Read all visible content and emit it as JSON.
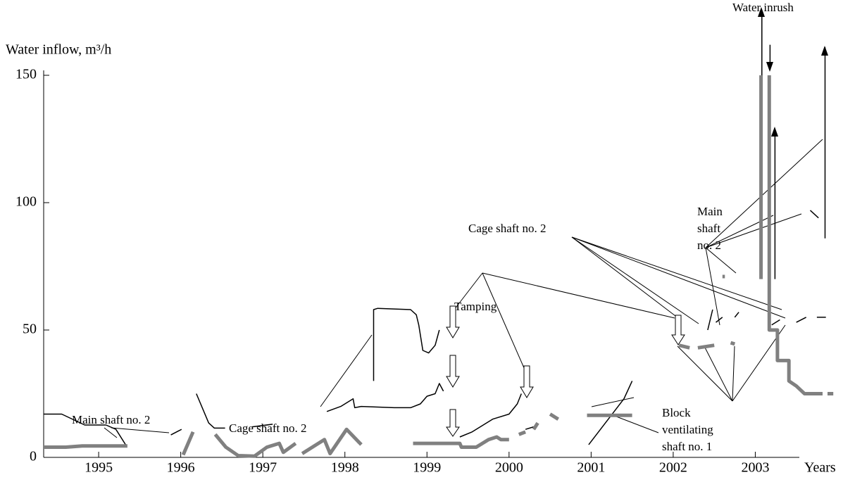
{
  "chart_data": {
    "type": "line",
    "ylabel": "Water inflow, m³/h",
    "xlabel": "Years",
    "xlim": [
      1994.33,
      2004.0
    ],
    "xticks": [
      1995,
      1996,
      1997,
      1998,
      1999,
      2000,
      2001,
      2002,
      2003
    ],
    "ylim": [
      0,
      150
    ],
    "yticks": [
      0,
      50,
      100,
      150
    ],
    "series": [
      {
        "color": "#000000",
        "x": [
          1994.33,
          1994.55,
          1994.83,
          1995.09,
          1995.21,
          1995.34,
          null,
          1995.88,
          1996.01,
          null,
          1996.19,
          1996.34,
          1996.41,
          1996.54,
          null,
          1996.87,
          1997.12,
          null,
          1997.78,
          1997.95,
          1998.1,
          1998.12,
          1998.2,
          1998.6,
          1998.8,
          1998.92,
          1999.0,
          1999.1,
          1999.15,
          1999.2,
          null,
          1998.35,
          1998.35,
          1998.4,
          1998.8,
          1998.87,
          1998.9,
          1998.95,
          1999.02,
          1999.1,
          1999.15,
          null,
          1999.4,
          1999.55,
          1999.8,
          2000.0,
          2000.1,
          2000.15,
          null,
          2000.2,
          2000.3,
          null,
          2000.97,
          2001.4,
          2001.5,
          null,
          2002.42,
          2002.48,
          null,
          2002.52,
          2002.6,
          null,
          2002.75,
          2002.8,
          null,
          2003.2,
          2003.3,
          null,
          2003.5,
          2003.62,
          null,
          2003.75,
          2003.86,
          null,
          2003.67,
          2003.77,
          null,
          2003.08,
          2003.08,
          null,
          2003.18,
          2003.18,
          null,
          2003.24,
          2003.24,
          null,
          2003.85,
          2003.85
        ],
        "values": [
          17,
          17,
          12.7,
          12.7,
          11,
          4.4,
          null,
          8.8,
          11,
          null,
          25,
          13.5,
          11.5,
          11.5,
          null,
          12,
          13,
          null,
          18,
          20,
          23,
          19.5,
          20,
          19.5,
          19.5,
          21,
          24,
          25,
          29,
          26,
          null,
          30,
          58,
          58.5,
          58,
          56,
          52,
          42,
          41,
          44,
          50,
          null,
          8,
          10,
          15,
          17,
          21,
          25,
          null,
          11,
          12,
          null,
          5,
          23,
          30,
          null,
          50,
          58,
          null,
          53,
          55,
          null,
          55,
          57,
          null,
          52,
          54,
          null,
          53,
          55,
          null,
          55,
          55,
          null,
          97,
          94,
          null,
          71,
          175,
          null,
          162,
          152,
          null,
          70,
          128,
          null,
          86,
          161
        ]
      },
      {
        "color": "#808080",
        "x": [
          1994.33,
          1994.6,
          1994.8,
          1995.35,
          null,
          1996.03,
          1996.15,
          null,
          1996.42,
          1996.55,
          1996.7,
          1996.9,
          1997.05,
          1997.2,
          1997.25,
          1997.4,
          null,
          1997.48,
          1997.75,
          1997.82,
          1998.02,
          1998.2,
          null,
          1998.83,
          1999.4,
          1999.42,
          1999.6,
          1999.75,
          1999.85,
          1999.9,
          2000.0,
          null,
          2000.12,
          2000.2,
          null,
          2000.3,
          2000.35,
          null,
          2000.5,
          2000.6,
          null,
          2000.95,
          2001.5,
          null,
          2002.07,
          2002.2,
          null,
          2002.3,
          2002.5,
          null,
          2002.7,
          2002.75,
          null,
          2002.6,
          2002.63,
          null,
          2003.07,
          2003.07,
          null,
          2003.17,
          2003.17,
          2003.27,
          2003.27,
          2003.41,
          2003.41,
          2003.5,
          2003.6,
          2003.82,
          null,
          2003.88,
          2003.95
        ],
        "values": [
          4,
          4,
          4.5,
          4.5,
          null,
          1,
          10,
          null,
          9,
          4,
          0.7,
          0.5,
          4,
          5.5,
          2,
          5.5,
          null,
          1.5,
          7,
          1.5,
          11,
          5,
          null,
          5.5,
          5.5,
          4,
          4,
          7,
          8,
          7,
          7,
          null,
          9,
          10,
          null,
          11,
          13.5,
          null,
          17,
          15,
          null,
          16.5,
          16.5,
          null,
          44,
          43,
          null,
          43,
          44,
          null,
          45,
          44.5,
          null,
          71,
          71,
          null,
          70,
          150,
          null,
          150,
          50,
          50,
          38,
          38,
          30,
          28,
          25,
          25,
          null,
          25,
          25
        ]
      }
    ],
    "annotations": [
      {
        "lines": [
          "Main shaft no. 2"
        ]
      },
      {
        "lines": [
          "Cage shaft no. 2"
        ]
      },
      {
        "lines": [
          "Tamping"
        ]
      },
      {
        "lines": [
          "Cage shaft no. 2"
        ]
      },
      {
        "lines": [
          "Main",
          "shaft",
          "no. 2"
        ]
      },
      {
        "lines": [
          "Block",
          "ventilating",
          "shaft no. 1"
        ]
      },
      {
        "lines": [
          "Water inrush"
        ]
      }
    ]
  }
}
